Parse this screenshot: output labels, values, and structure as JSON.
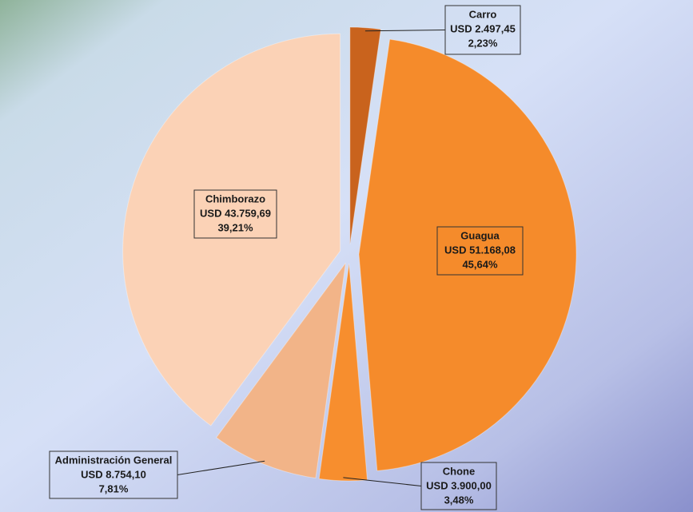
{
  "chart_data": {
    "type": "pie",
    "categories": [
      "Carro",
      "Guagua",
      "Chone",
      "Administración  General",
      "Chimborazo"
    ],
    "values": [
      2.23,
      45.64,
      3.48,
      7.81,
      39.21
    ],
    "value_labels": [
      "2,23%",
      "45,64%",
      "3,48%",
      "7,81%",
      "39,21%"
    ],
    "amounts": [
      {
        "value": 2497.45,
        "label": "USD  2.497,45"
      },
      {
        "value": 51168.08,
        "label": "USD  51.168,08"
      },
      {
        "value": 3900.0,
        "label": "USD  3.900,00"
      },
      {
        "value": 8754.1,
        "label": "USD  8.754,10"
      },
      {
        "value": 43759.69,
        "label": "USD  43.759,69"
      }
    ],
    "colors": [
      "#c9631d",
      "#f58b2b",
      "#f78e2e",
      "#f2b488",
      "#fbd2b6"
    ]
  }
}
